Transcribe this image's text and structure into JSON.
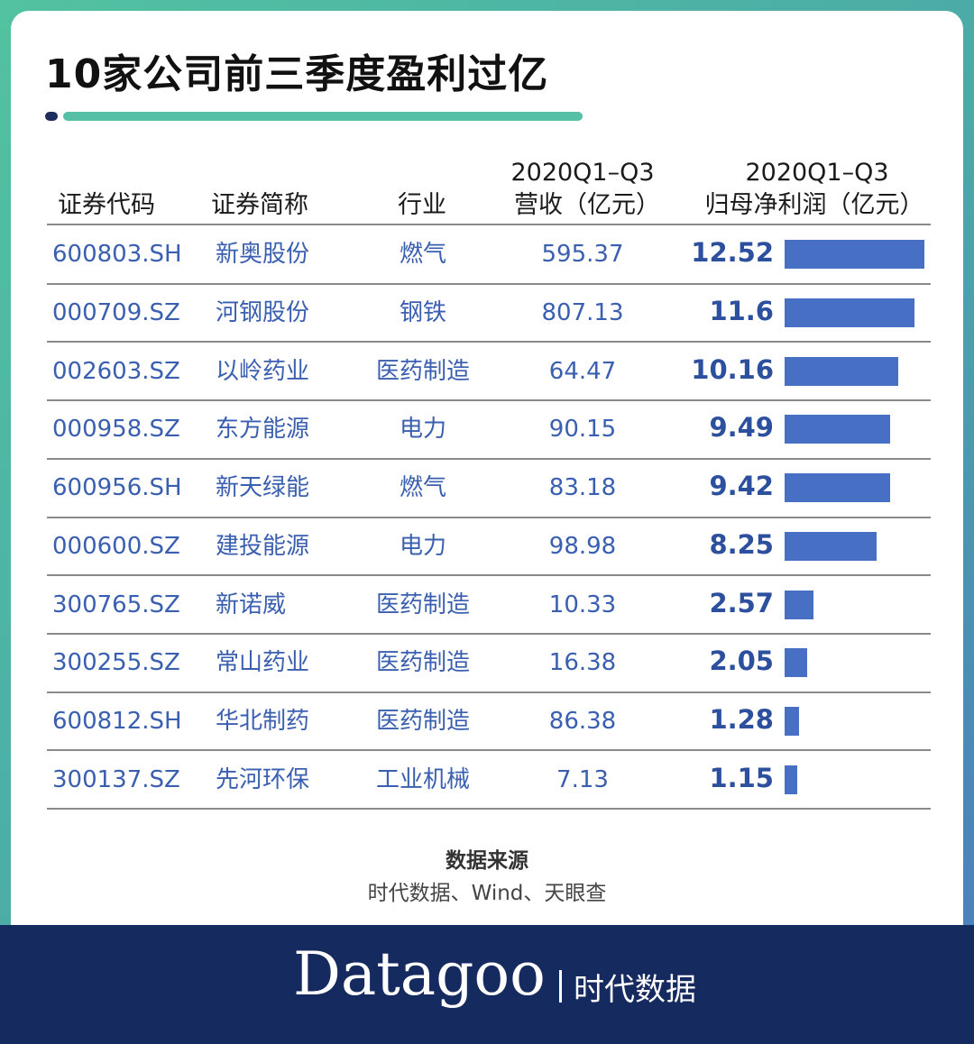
{
  "title": "10家公司前三季度盈利过亿",
  "colors": {
    "accent": "#55c0a5",
    "bar": "#4770c4",
    "text_blue": "#3a5fb0",
    "footer": "#152a5e"
  },
  "headers": {
    "code": "证券代码",
    "name": "证券简称",
    "industry": "行业",
    "revenue_line1": "2020Q1–Q3",
    "revenue_line2": "营收（亿元）",
    "profit_line1": "2020Q1–Q3",
    "profit_line2": "归母净利润（亿元）"
  },
  "chart_data": {
    "type": "table",
    "columns": [
      "证券代码",
      "证券简称",
      "行业",
      "2020Q1–Q3 营收（亿元）",
      "2020Q1–Q3 归母净利润（亿元）"
    ],
    "rows": [
      {
        "code": "600803.SH",
        "name": "新奥股份",
        "industry": "燃气",
        "revenue": "595.37",
        "profit": "12.52",
        "profit_value": 12.52
      },
      {
        "code": "000709.SZ",
        "name": "河钢股份",
        "industry": "钢铁",
        "revenue": "807.13",
        "profit": "11.6",
        "profit_value": 11.6
      },
      {
        "code": "002603.SZ",
        "name": "以岭药业",
        "industry": "医药制造",
        "revenue": "64.47",
        "profit": "10.16",
        "profit_value": 10.16
      },
      {
        "code": "000958.SZ",
        "name": "东方能源",
        "industry": "电力",
        "revenue": "90.15",
        "profit": "9.49",
        "profit_value": 9.49
      },
      {
        "code": "600956.SH",
        "name": "新天绿能",
        "industry": "燃气",
        "revenue": "83.18",
        "profit": "9.42",
        "profit_value": 9.42
      },
      {
        "code": "000600.SZ",
        "name": "建投能源",
        "industry": "电力",
        "revenue": "98.98",
        "profit": "8.25",
        "profit_value": 8.25
      },
      {
        "code": "300765.SZ",
        "name": "新诺威",
        "industry": "医药制造",
        "revenue": "10.33",
        "profit": "2.57",
        "profit_value": 2.57
      },
      {
        "code": "300255.SZ",
        "name": "常山药业",
        "industry": "医药制造",
        "revenue": "16.38",
        "profit": "2.05",
        "profit_value": 2.05
      },
      {
        "code": "600812.SH",
        "name": "华北制药",
        "industry": "医药制造",
        "revenue": "86.38",
        "profit": "1.28",
        "profit_value": 1.28
      },
      {
        "code": "300137.SZ",
        "name": "先河环保",
        "industry": "工业机械",
        "revenue": "7.13",
        "profit": "1.15",
        "profit_value": 1.15
      }
    ]
  },
  "source": {
    "title": "数据来源",
    "text": "时代数据、Wind、天眼查"
  },
  "brand": {
    "name": "Datagoo",
    "cn": "时代数据"
  }
}
